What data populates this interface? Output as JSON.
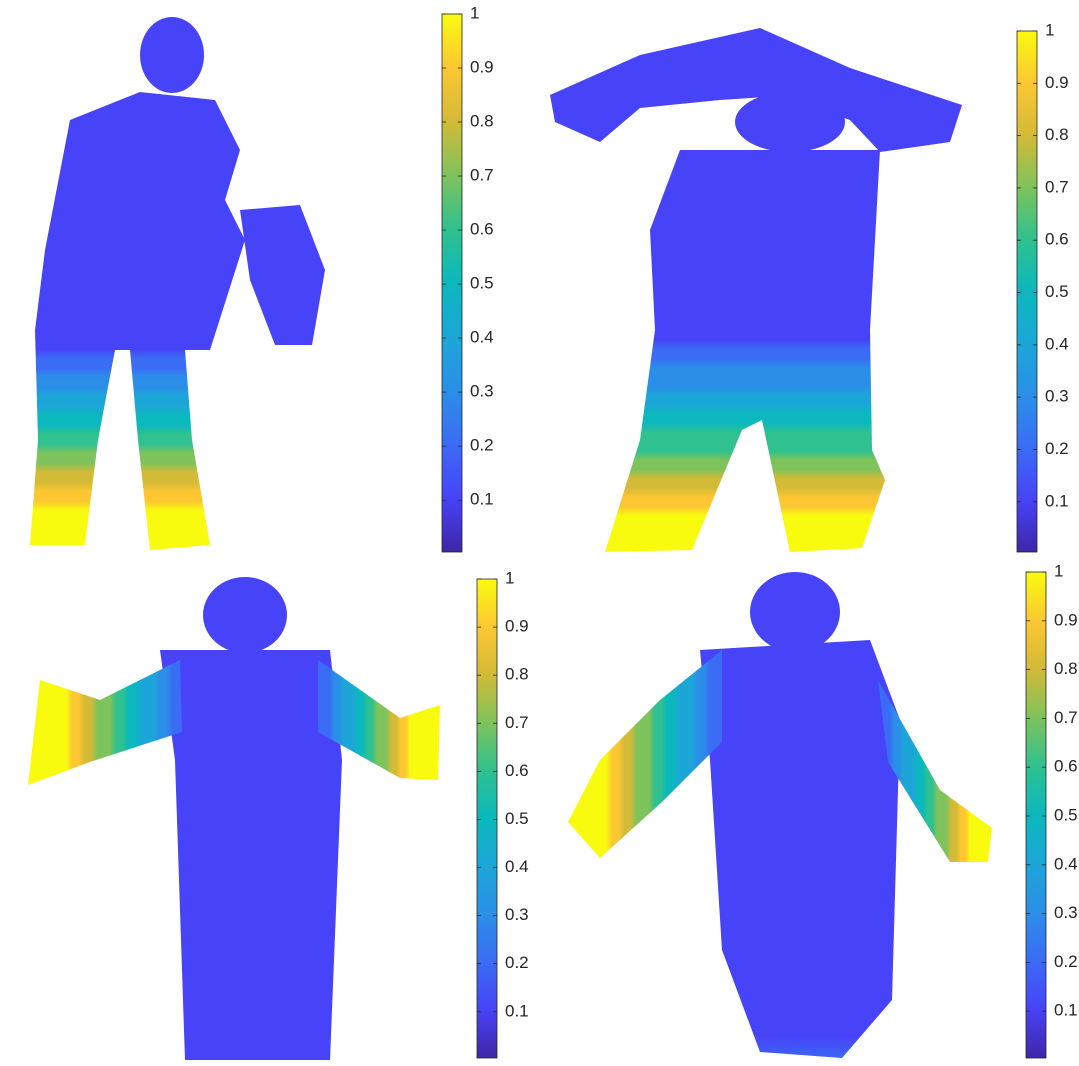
{
  "chart_data": [
    {
      "type": "colorbar",
      "colormap": [
        "#3e26a8",
        "#4743f8",
        "#3a6cf5",
        "#2b8fe8",
        "#1ca6d8",
        "#0bb8bd",
        "#2fc18f",
        "#7ec35b",
        "#d3ba37",
        "#fcc732",
        "#f9fb0e"
      ],
      "clim": [
        0.004,
        1
      ],
      "cticks": [
        0.1,
        0.2,
        0.3,
        0.4,
        0.5,
        0.6,
        0.7,
        0.8,
        0.9,
        1
      ]
    },
    {
      "type": "colorbar",
      "colormap": [
        "#3e26a8",
        "#4743f8",
        "#3a6cf5",
        "#2b8fe8",
        "#1ca6d8",
        "#0bb8bd",
        "#2fc18f",
        "#7ec35b",
        "#d3ba37",
        "#fcc732",
        "#f9fb0e"
      ],
      "clim": [
        0.004,
        1
      ],
      "cticks": [
        0.1,
        0.2,
        0.3,
        0.4,
        0.5,
        0.6,
        0.7,
        0.8,
        0.9,
        1
      ]
    },
    {
      "type": "colorbar",
      "colormap": [
        "#3e26a8",
        "#4743f8",
        "#3a6cf5",
        "#2b8fe8",
        "#1ca6d8",
        "#0bb8bd",
        "#2fc18f",
        "#7ec35b",
        "#d3ba37",
        "#fcc732",
        "#f9fb0e"
      ],
      "clim": [
        0.004,
        1
      ],
      "cticks": [
        0.1,
        0.2,
        0.3,
        0.4,
        0.5,
        0.6,
        0.7,
        0.8,
        0.9,
        1
      ]
    },
    {
      "type": "colorbar",
      "colormap": [
        "#3e26a8",
        "#4743f8",
        "#3a6cf5",
        "#2b8fe8",
        "#1ca6d8",
        "#0bb8bd",
        "#2fc18f",
        "#7ec35b",
        "#d3ba37",
        "#fcc732",
        "#f9fb0e"
      ],
      "clim": [
        0.004,
        1
      ],
      "cticks": [
        0.1,
        0.2,
        0.3,
        0.4,
        0.5,
        0.6,
        0.7,
        0.8,
        0.9,
        1
      ]
    }
  ]
}
